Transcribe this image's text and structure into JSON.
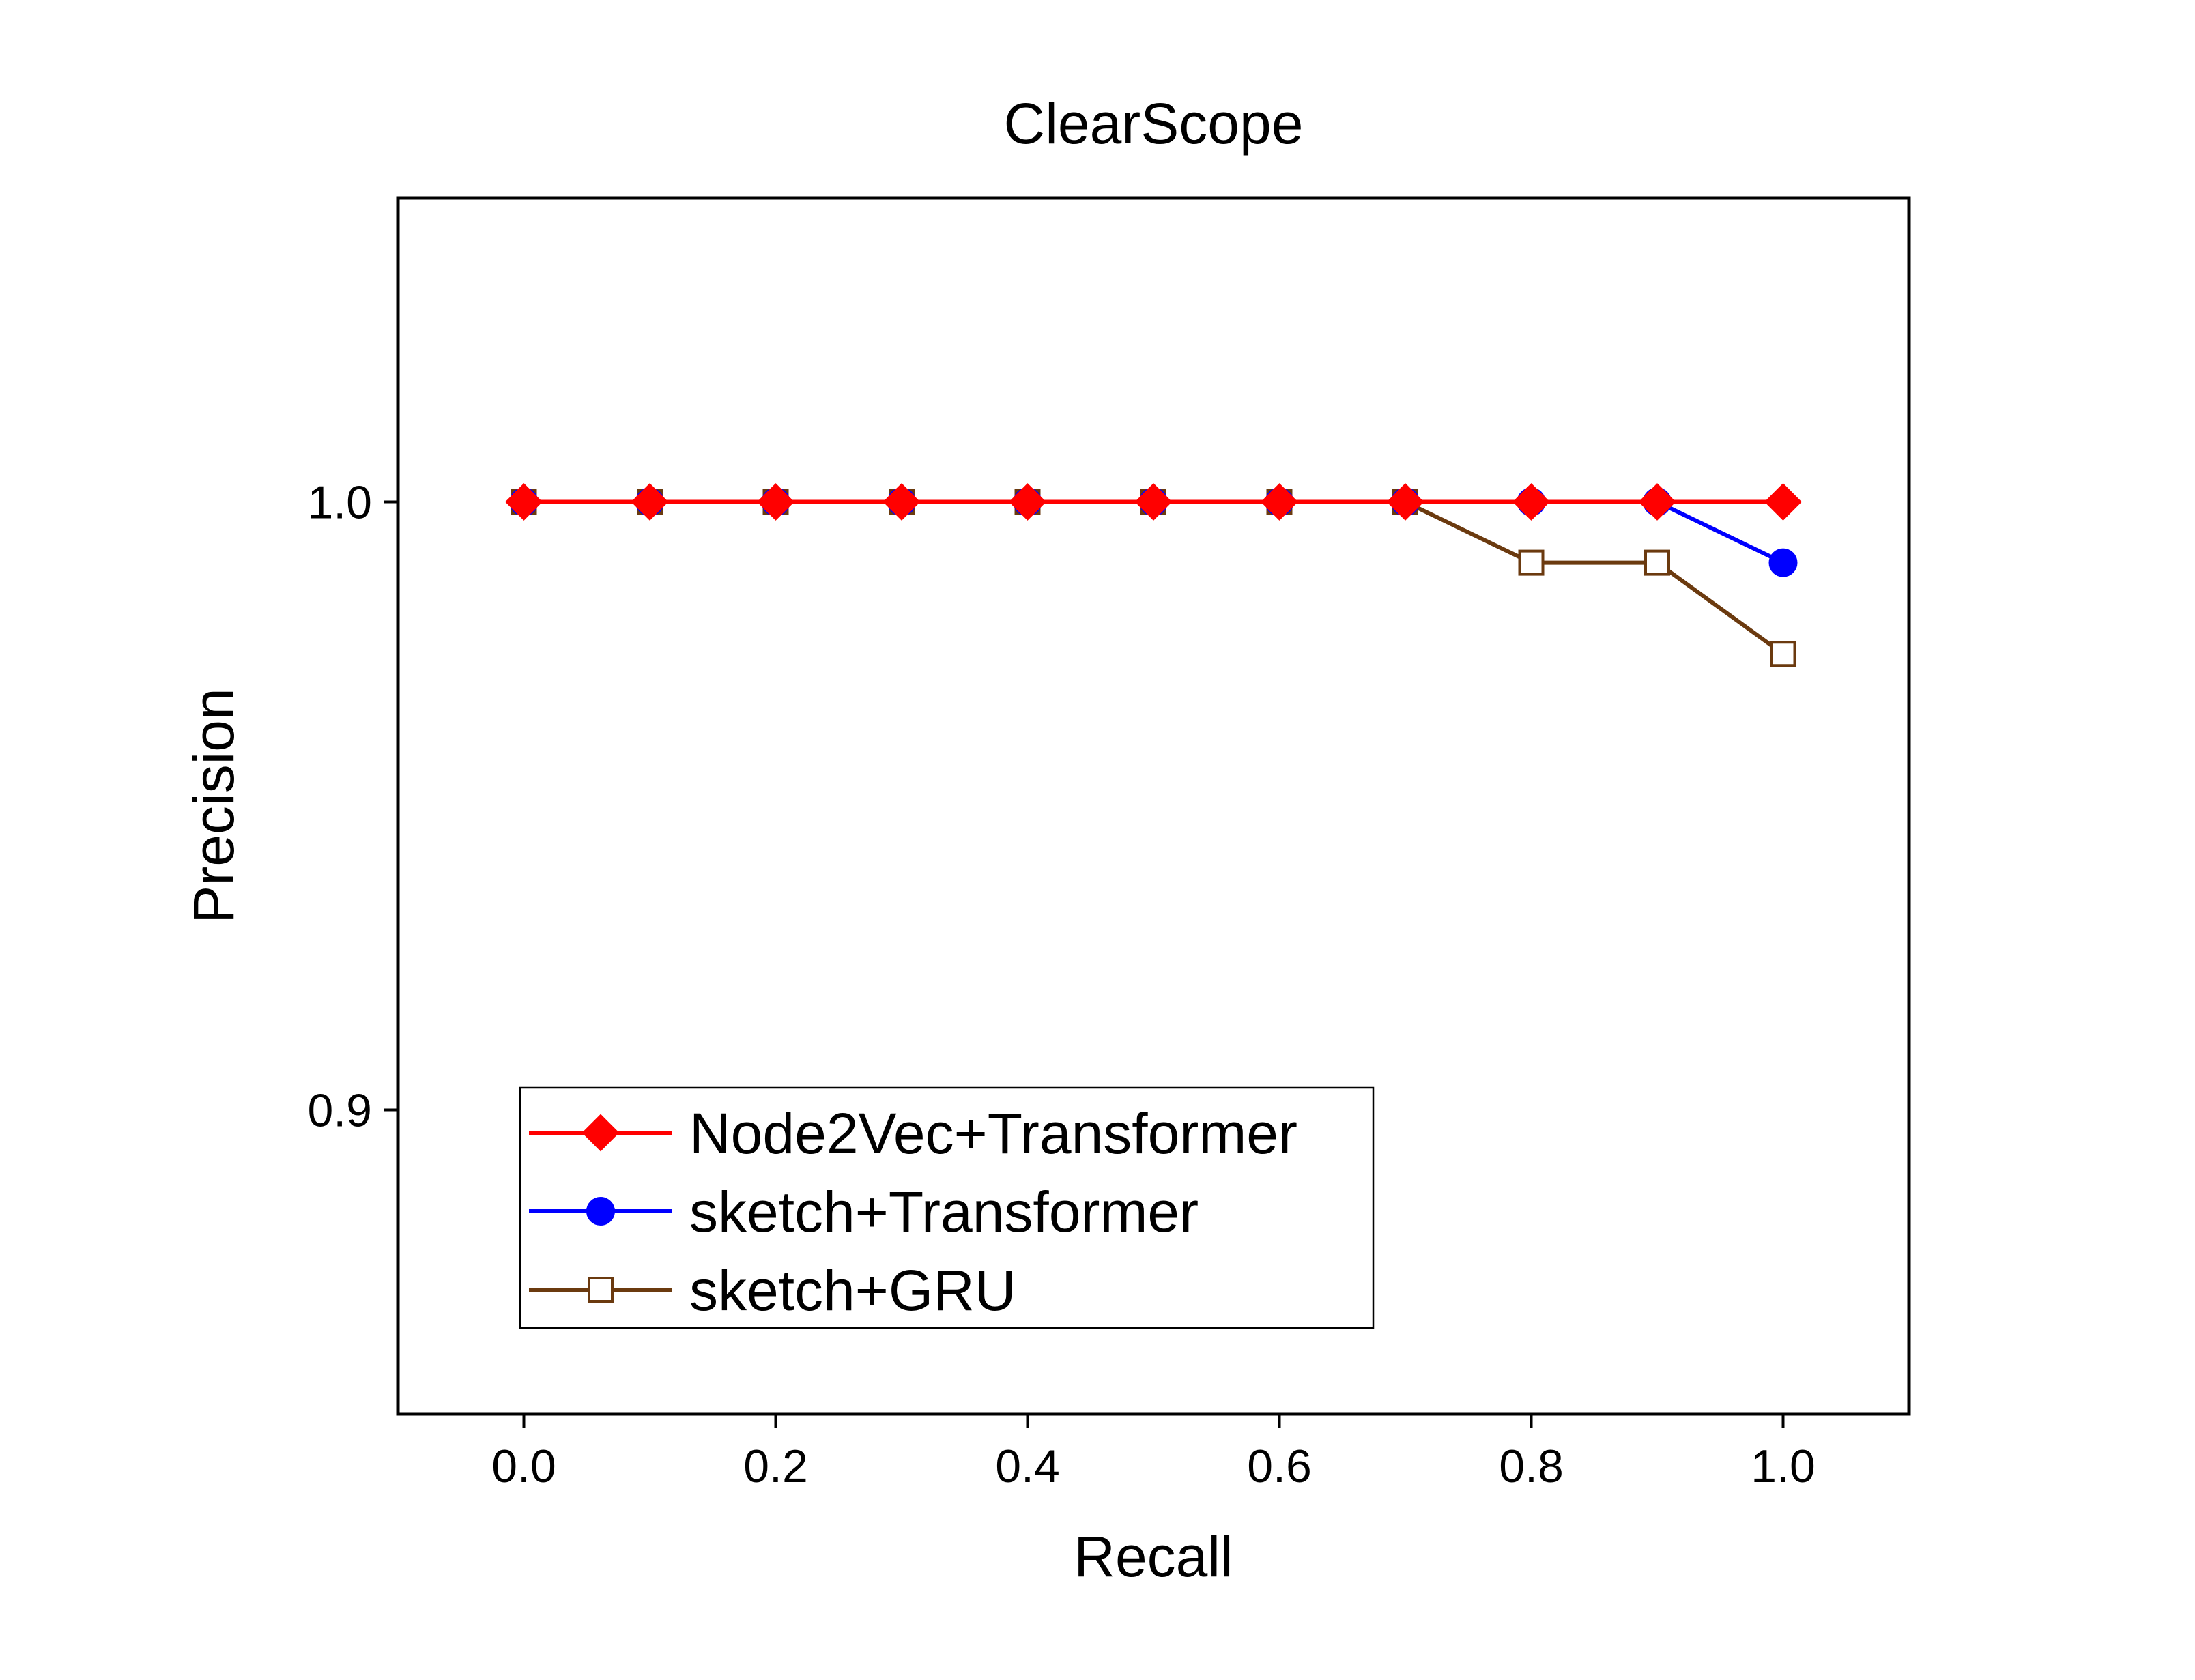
{
  "chart_data": {
    "type": "line",
    "title": "ClearScope",
    "xlabel": "Recall",
    "ylabel": "Precision",
    "xlim": [
      -0.1,
      1.1
    ],
    "ylim": [
      0.85,
      1.05
    ],
    "xticks": [
      "0.0",
      "0.2",
      "0.4",
      "0.6",
      "0.8",
      "1.0"
    ],
    "yticks": [
      "0.9",
      "1.0"
    ],
    "x": [
      0.0,
      0.1,
      0.2,
      0.3,
      0.4,
      0.5,
      0.6,
      0.7,
      0.8,
      0.9,
      1.0
    ],
    "grid": false,
    "legend_position": "bottom-left",
    "series": [
      {
        "name": "sketch+GRU",
        "color": "#6b3a0f",
        "marker": "square-open",
        "values": [
          1.0,
          1.0,
          1.0,
          1.0,
          1.0,
          1.0,
          1.0,
          1.0,
          0.99,
          0.99,
          0.975
        ]
      },
      {
        "name": "sketch+Transformer",
        "color": "#0000ff",
        "marker": "circle",
        "values": [
          1.0,
          1.0,
          1.0,
          1.0,
          1.0,
          1.0,
          1.0,
          1.0,
          1.0,
          1.0,
          0.99
        ]
      },
      {
        "name": "Node2Vec+Transformer",
        "color": "#ff0000",
        "marker": "diamond",
        "values": [
          1.0,
          1.0,
          1.0,
          1.0,
          1.0,
          1.0,
          1.0,
          1.0,
          1.0,
          1.0,
          1.0
        ]
      }
    ],
    "legend_order": [
      "Node2Vec+Transformer",
      "sketch+Transformer",
      "sketch+GRU"
    ]
  }
}
